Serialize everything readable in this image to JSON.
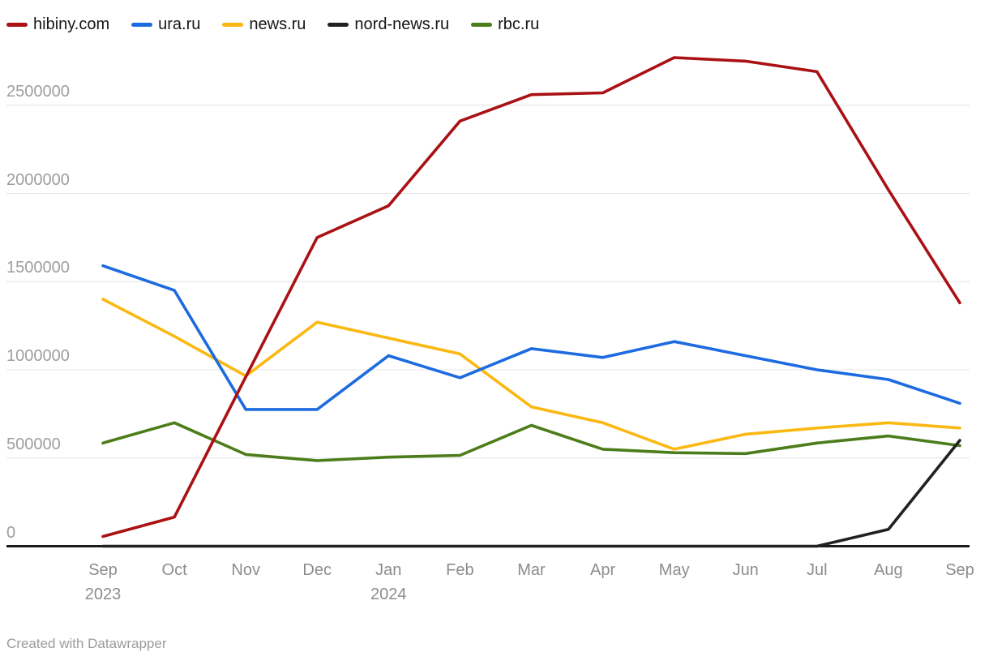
{
  "footer": {
    "credit": "Created with Datawrapper"
  },
  "chart_data": {
    "type": "line",
    "title": "",
    "xlabel": "",
    "ylabel": "",
    "grid": "horizontal",
    "legend_position": "top-left",
    "ylim": [
      0,
      2850000
    ],
    "y_tick_values": [
      2500000,
      2000000,
      1500000,
      1000000,
      500000,
      0
    ],
    "y_tick_labels": [
      "2500000",
      "2000000",
      "1500000",
      "1000000",
      "500000",
      "0"
    ],
    "categories": [
      {
        "month": "Sep",
        "year": "2023"
      },
      {
        "month": "Oct"
      },
      {
        "month": "Nov"
      },
      {
        "month": "Dec"
      },
      {
        "month": "Jan",
        "year": "2024"
      },
      {
        "month": "Feb"
      },
      {
        "month": "Mar"
      },
      {
        "month": "Apr"
      },
      {
        "month": "May"
      },
      {
        "month": "Jun"
      },
      {
        "month": "Jul"
      },
      {
        "month": "Aug"
      },
      {
        "month": "Sep"
      }
    ],
    "series": [
      {
        "name": "hibiny.com",
        "color": "#aa1114",
        "values": [
          55000,
          165000,
          960000,
          1750000,
          1930000,
          2410000,
          2560000,
          2570000,
          2770000,
          2750000,
          2690000,
          2020000,
          1380000
        ]
      },
      {
        "name": "ura.ru",
        "color": "#1d6be0",
        "values": [
          1590000,
          1450000,
          775000,
          775000,
          1080000,
          955000,
          1120000,
          1070000,
          1160000,
          1080000,
          1000000,
          945000,
          810000
        ]
      },
      {
        "name": "news.ru",
        "color": "#fbb812",
        "values": [
          1400000,
          1190000,
          965000,
          1270000,
          1180000,
          1090000,
          790000,
          700000,
          550000,
          635000,
          670000,
          700000,
          670000
        ]
      },
      {
        "name": "nord-news.ru",
        "color": "#212121",
        "values": [
          0,
          0,
          0,
          0,
          0,
          0,
          0,
          0,
          0,
          0,
          0,
          95000,
          600000
        ]
      },
      {
        "name": "rbc.ru",
        "color": "#4c7d1a",
        "values": [
          585000,
          700000,
          520000,
          485000,
          505000,
          515000,
          685000,
          550000,
          530000,
          525000,
          585000,
          625000,
          570000
        ]
      }
    ],
    "colors": {
      "gridline": "#e4e4e4",
      "axis": "#1a1a1a",
      "y_tick_text": "#9e9e9e",
      "x_tick_text": "#8c8c8c"
    }
  }
}
